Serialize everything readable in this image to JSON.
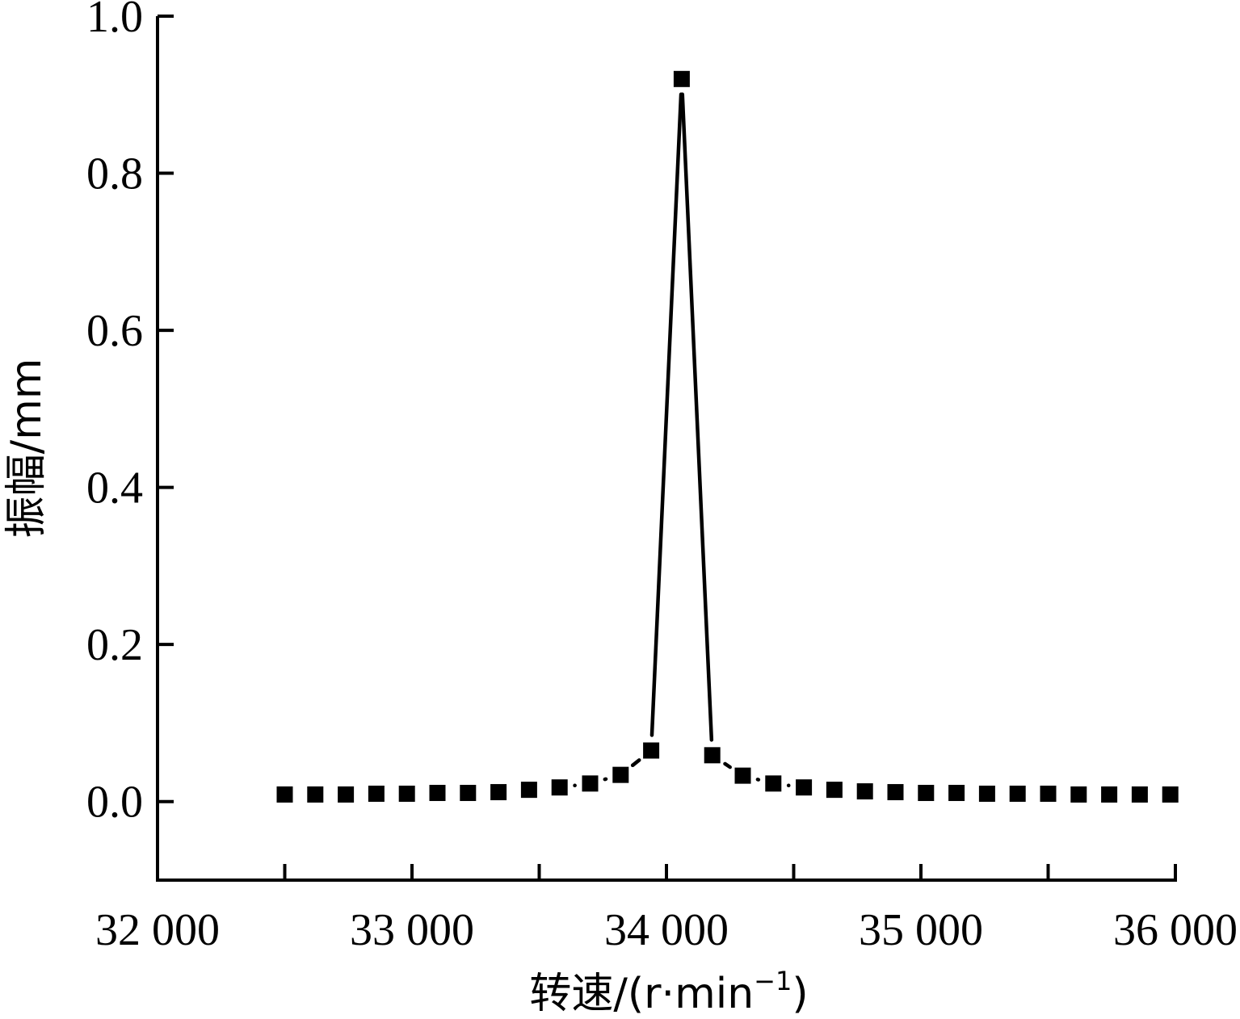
{
  "chart_data": {
    "type": "line",
    "xlabel": "转速/(r·min",
    "xlabel_sup": "−1",
    "xlabel_close": ")",
    "ylabel": "振幅/mm",
    "xlim": [
      32000,
      36000
    ],
    "ylim": [
      -0.1,
      1.0
    ],
    "x_ticks": [
      {
        "value": 32000,
        "label": "32 000"
      },
      {
        "value": 33000,
        "label": "33 000"
      },
      {
        "value": 34000,
        "label": "34 000"
      },
      {
        "value": 35000,
        "label": "35 000"
      },
      {
        "value": 36000,
        "label": "36 000"
      }
    ],
    "x_minor_ticks": [
      32500,
      33500,
      34500,
      35500
    ],
    "y_ticks": [
      {
        "value": 0.0,
        "label": "0.0"
      },
      {
        "value": 0.2,
        "label": "0.2"
      },
      {
        "value": 0.4,
        "label": "0.4"
      },
      {
        "value": 0.6,
        "label": "0.6"
      },
      {
        "value": 0.8,
        "label": "0.8"
      },
      {
        "value": 1.0,
        "label": "1.0"
      }
    ],
    "grid": false,
    "series": [
      {
        "marker": "square",
        "color": "#000000",
        "x": [
          32500,
          32620,
          32740,
          32860,
          32980,
          33100,
          33220,
          33340,
          33460,
          33580,
          33700,
          33820,
          33940,
          34060,
          34180,
          34300,
          34420,
          34540,
          34660,
          34780,
          34900,
          35020,
          35140,
          35260,
          35380,
          35500,
          35620,
          35740,
          35860,
          35980
        ],
        "y": [
          0.009,
          0.009,
          0.009,
          0.01,
          0.01,
          0.011,
          0.011,
          0.012,
          0.015,
          0.018,
          0.023,
          0.034,
          0.065,
          0.92,
          0.059,
          0.033,
          0.023,
          0.018,
          0.015,
          0.013,
          0.012,
          0.011,
          0.011,
          0.01,
          0.01,
          0.01,
          0.009,
          0.009,
          0.009,
          0.009
        ]
      }
    ]
  }
}
